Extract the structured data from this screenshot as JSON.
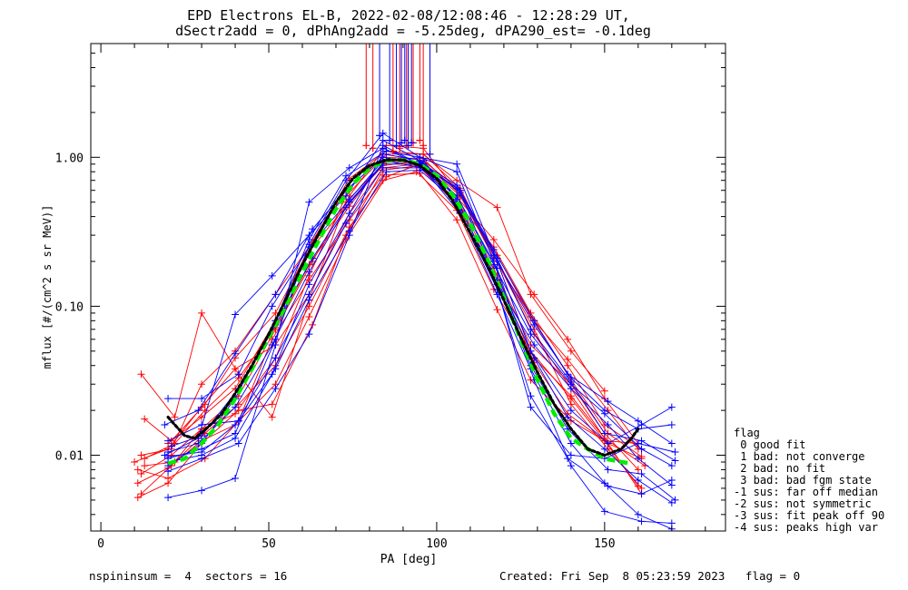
{
  "title": {
    "line1": "EPD Electrons EL-B, 2022-02-08/12:08:46 - 12:28:29 UT,",
    "line2": "dSectr2add = 0, dPhAng2add = -5.25deg, dPA290_est=  -0.1deg"
  },
  "footer": {
    "left": "nspininsum =  4  sectors = 16",
    "right": "Created: Fri Sep  8 05:23:59 2023   flag = 0"
  },
  "legend": {
    "header": "flag",
    "items": [
      " 0 good fit",
      " 1 bad: not converge",
      " 2 bad: no fit",
      " 3 bad: bad fgm state",
      "-1 sus: far off median",
      "-2 sus: not symmetric",
      "-3 sus: fit peak off 90",
      "-4 sus: peaks high var"
    ]
  },
  "colors": {
    "red": "#ff0000",
    "blue": "#0000ff",
    "green": "#00ee00",
    "black": "#000000"
  },
  "chart_data": {
    "type": "line",
    "xlabel": "PA [deg]",
    "ylabel": "mflux [#/(cm^2 s sr MeV)]",
    "xlim": [
      -3,
      186
    ],
    "ylim": [
      0.0031,
      5.8
    ],
    "yscale": "log",
    "xticks": [
      0,
      50,
      100,
      150
    ],
    "xtick_labels": [
      "0",
      "50",
      "100",
      "150"
    ],
    "yticks": [
      0.01,
      0.1,
      1.0
    ],
    "ytick_labels": [
      "0.01",
      "0.10",
      "1.00"
    ],
    "series": [
      {
        "color": "red",
        "x": [
          12,
          21,
          30,
          41,
          52,
          63,
          74,
          85,
          96,
          107,
          118,
          129,
          140,
          151,
          161
        ],
        "y": [
          0.0055,
          0.0085,
          0.015,
          0.025,
          0.07,
          0.2,
          0.55,
          1.2,
          1.15,
          0.55,
          0.2,
          0.07,
          0.022,
          0.011,
          0.006
        ]
      },
      {
        "color": "red",
        "x": [
          10,
          20,
          30,
          40,
          52,
          62,
          74,
          84,
          94,
          106,
          118,
          128,
          140,
          150,
          160
        ],
        "y": [
          0.009,
          0.011,
          0.021,
          0.038,
          0.055,
          0.12,
          0.42,
          0.85,
          0.9,
          0.48,
          0.16,
          0.055,
          0.03,
          0.014,
          0.008
        ]
      },
      {
        "color": "red",
        "x": [
          12,
          22,
          30,
          41,
          51,
          62,
          73,
          85,
          95,
          106,
          117,
          129,
          139,
          151,
          161
        ],
        "y": [
          0.035,
          0.018,
          0.09,
          0.035,
          0.018,
          0.11,
          0.5,
          0.95,
          0.85,
          0.52,
          0.18,
          0.042,
          0.019,
          0.012,
          0.0055
        ]
      },
      {
        "color": "red",
        "x": [
          13,
          21,
          31,
          40,
          52,
          61,
          74,
          84,
          96,
          107,
          118,
          128,
          140,
          150,
          160
        ],
        "y": [
          0.0175,
          0.0125,
          0.022,
          0.045,
          0.09,
          0.22,
          0.5,
          0.88,
          0.95,
          0.6,
          0.2,
          0.05,
          0.024,
          0.0125,
          0.0062
        ]
      },
      {
        "color": "red",
        "x": [
          11,
          20,
          30,
          41,
          51,
          63,
          73,
          84,
          95,
          106,
          117,
          128,
          139,
          150,
          161
        ],
        "y": [
          0.0052,
          0.0065,
          0.012,
          0.02,
          0.022,
          0.075,
          0.3,
          0.82,
          0.88,
          0.5,
          0.25,
          0.09,
          0.04,
          0.016,
          0.011
        ]
      },
      {
        "color": "red",
        "x": [
          12,
          21,
          30,
          40,
          52,
          62,
          73,
          85,
          96,
          107,
          118,
          129,
          140,
          151,
          161
        ],
        "y": [
          0.0075,
          0.01,
          0.015,
          0.019,
          0.045,
          0.16,
          0.55,
          1.05,
          1.05,
          0.62,
          0.2,
          0.065,
          0.028,
          0.012,
          0.0095
        ]
      },
      {
        "color": "red",
        "x": [
          11,
          20,
          31,
          41,
          51,
          62,
          74,
          84,
          95,
          106,
          118,
          128,
          140,
          150,
          160
        ],
        "y": [
          0.008,
          0.007,
          0.0095,
          0.017,
          0.06,
          0.15,
          0.38,
          0.76,
          0.78,
          0.38,
          0.095,
          0.032,
          0.017,
          0.0125,
          0.012
        ]
      },
      {
        "color": "red",
        "x": [
          12,
          21,
          30,
          40,
          52,
          63,
          73,
          84,
          96,
          107,
          117,
          129,
          139,
          151,
          160
        ],
        "y": [
          0.01,
          0.011,
          0.03,
          0.05,
          0.12,
          0.27,
          0.6,
          1.0,
          0.98,
          0.56,
          0.21,
          0.08,
          0.044,
          0.02,
          0.011
        ]
      },
      {
        "color": "red",
        "x": [
          20,
          30,
          40,
          52,
          62,
          74,
          85,
          96,
          106,
          118,
          128,
          140,
          150
        ],
        "y": [
          0.012,
          0.018,
          0.028,
          0.08,
          0.25,
          0.72,
          1.1,
          1.05,
          0.7,
          0.46,
          0.12,
          0.05,
          0.027
        ]
      },
      {
        "color": "red",
        "x": [
          13,
          22,
          31,
          41,
          52,
          62,
          74,
          84,
          94,
          106,
          117,
          129,
          140,
          150,
          162
        ],
        "y": [
          0.0085,
          0.009,
          0.014,
          0.022,
          0.04,
          0.1,
          0.34,
          0.7,
          0.8,
          0.44,
          0.13,
          0.045,
          0.025,
          0.013,
          0.0085
        ]
      },
      {
        "color": "red",
        "x": [
          11,
          20,
          30,
          40,
          52,
          62,
          73,
          85,
          96,
          107,
          118,
          128,
          140,
          151,
          161
        ],
        "y": [
          0.0065,
          0.0082,
          0.0125,
          0.016,
          0.03,
          0.085,
          0.28,
          0.74,
          0.92,
          0.55,
          0.22,
          0.085,
          0.032,
          0.014,
          0.0098
        ]
      },
      {
        "color": "red",
        "x": [
          13,
          22,
          31,
          41,
          52,
          62,
          74,
          84,
          95,
          106,
          117,
          129,
          139,
          150,
          160
        ],
        "y": [
          0.0095,
          0.012,
          0.02,
          0.033,
          0.072,
          0.19,
          0.47,
          0.92,
          0.94,
          0.54,
          0.28,
          0.12,
          0.06,
          0.024,
          0.012
        ]
      },
      {
        "color": "blue",
        "x": [
          20,
          30,
          40,
          52,
          62,
          73,
          84,
          95,
          106,
          118,
          128,
          140,
          151,
          161,
          170
        ],
        "y": [
          0.0095,
          0.011,
          0.014,
          0.06,
          0.26,
          0.7,
          1.45,
          1.0,
          0.9,
          0.2,
          0.05,
          0.02,
          0.012,
          0.016,
          0.021
        ]
      },
      {
        "color": "blue",
        "x": [
          20,
          30,
          40,
          52,
          62,
          74,
          84,
          96,
          106,
          117,
          129,
          140,
          150,
          160,
          170
        ],
        "y": [
          0.0052,
          0.0058,
          0.007,
          0.055,
          0.5,
          0.85,
          1.15,
          0.88,
          0.62,
          0.22,
          0.075,
          0.033,
          0.02,
          0.015,
          0.016
        ]
      },
      {
        "color": "blue",
        "x": [
          19,
          29,
          40,
          51,
          62,
          73,
          84,
          95,
          106,
          118,
          128,
          139,
          151,
          161,
          171
        ],
        "y": [
          0.01,
          0.013,
          0.088,
          0.16,
          0.3,
          0.55,
          1.3,
          0.95,
          0.55,
          0.18,
          0.04,
          0.015,
          0.008,
          0.0075,
          0.005
        ]
      },
      {
        "color": "blue",
        "x": [
          20,
          30,
          41,
          52,
          62,
          74,
          84,
          95,
          107,
          118,
          128,
          140,
          150,
          160,
          170
        ],
        "y": [
          0.0078,
          0.0095,
          0.012,
          0.028,
          0.065,
          0.3,
          1.2,
          0.9,
          0.42,
          0.12,
          0.038,
          0.012,
          0.0065,
          0.004,
          0.0032
        ]
      },
      {
        "color": "blue",
        "x": [
          20,
          30,
          40,
          52,
          62,
          73,
          85,
          95,
          106,
          117,
          129,
          140,
          150,
          161,
          170
        ],
        "y": [
          0.0085,
          0.012,
          0.024,
          0.08,
          0.28,
          0.75,
          1.1,
          1.0,
          0.8,
          0.2,
          0.032,
          0.0085,
          0.0042,
          0.0036,
          0.0035
        ]
      },
      {
        "color": "blue",
        "x": [
          20,
          30,
          41,
          51,
          62,
          74,
          84,
          96,
          106,
          118,
          128,
          139,
          151,
          161,
          170
        ],
        "y": [
          0.024,
          0.024,
          0.035,
          0.1,
          0.25,
          0.52,
          0.95,
          0.85,
          0.48,
          0.13,
          0.025,
          0.0095,
          0.0062,
          0.0055,
          0.0068
        ]
      },
      {
        "color": "blue",
        "x": [
          19,
          29,
          40,
          52,
          63,
          73,
          84,
          95,
          107,
          117,
          128,
          140,
          150,
          160,
          171
        ],
        "y": [
          0.016,
          0.02,
          0.048,
          0.12,
          0.33,
          0.6,
          1.0,
          0.92,
          0.6,
          0.16,
          0.021,
          0.01,
          0.0095,
          0.012,
          0.0105
        ]
      },
      {
        "color": "blue",
        "x": [
          20,
          30,
          41,
          51,
          62,
          74,
          84,
          96,
          106,
          118,
          129,
          140,
          151,
          160,
          170
        ],
        "y": [
          0.0125,
          0.016,
          0.017,
          0.035,
          0.14,
          0.42,
          1.05,
          0.95,
          0.52,
          0.14,
          0.055,
          0.028,
          0.016,
          0.0095,
          0.0063
        ]
      },
      {
        "color": "blue",
        "x": [
          20,
          30,
          40,
          52,
          62,
          73,
          84,
          95,
          106,
          117,
          128,
          140,
          150,
          161,
          170
        ],
        "y": [
          0.0098,
          0.0105,
          0.016,
          0.045,
          0.12,
          0.36,
          0.85,
          0.85,
          0.55,
          0.19,
          0.065,
          0.03,
          0.019,
          0.011,
          0.0085
        ]
      },
      {
        "color": "blue",
        "x": [
          21,
          30,
          41,
          52,
          63,
          74,
          85,
          95,
          106,
          117,
          129,
          139,
          151,
          160,
          170
        ],
        "y": [
          0.0115,
          0.0135,
          0.028,
          0.075,
          0.21,
          0.5,
          0.97,
          0.93,
          0.65,
          0.24,
          0.08,
          0.035,
          0.023,
          0.017,
          0.012
        ]
      },
      {
        "color": "blue",
        "x": [
          20,
          29,
          40,
          51,
          62,
          73,
          84,
          96,
          107,
          118,
          128,
          140,
          150,
          161,
          171
        ],
        "y": [
          0.0105,
          0.012,
          0.021,
          0.055,
          0.17,
          0.46,
          0.9,
          0.9,
          0.58,
          0.21,
          0.07,
          0.031,
          0.014,
          0.0125,
          0.0092
        ]
      },
      {
        "color": "blue",
        "x": [
          20,
          30,
          40,
          52,
          62,
          74,
          85,
          95,
          106,
          118,
          129,
          139,
          150,
          160,
          170
        ],
        "y": [
          0.009,
          0.01,
          0.013,
          0.038,
          0.11,
          0.32,
          0.8,
          0.82,
          0.5,
          0.15,
          0.045,
          0.018,
          0.011,
          0.0068,
          0.0048
        ]
      }
    ],
    "spikes": {
      "note": "vertical lines rising past the top of the plot near PA 90",
      "red": [
        {
          "x": 79,
          "y0": 1.2
        },
        {
          "x": 81,
          "y0": 1.15
        },
        {
          "x": 87,
          "y0": 1.1
        },
        {
          "x": 89,
          "y0": 1.15
        },
        {
          "x": 91,
          "y0": 1.2
        },
        {
          "x": 93,
          "y0": 1.25
        },
        {
          "x": 95,
          "y0": 1.3
        },
        {
          "x": 96,
          "y0": 1.2
        }
      ],
      "blue": [
        {
          "x": 83,
          "y0": 1.4
        },
        {
          "x": 86,
          "y0": 1.3
        },
        {
          "x": 88,
          "y0": 1.2
        },
        {
          "x": 89.5,
          "y0": 1.25
        },
        {
          "x": 90.5,
          "y0": 1.3
        },
        {
          "x": 91.5,
          "y0": 1.2
        },
        {
          "x": 92.5,
          "y0": 1.25
        },
        {
          "x": 98,
          "y0": 1.05
        }
      ]
    },
    "fit_curves": [
      {
        "color": "green",
        "dashed": true,
        "x": [
          20,
          25,
          30,
          35,
          40,
          45,
          50,
          55,
          60,
          65,
          70,
          75,
          80,
          85,
          90,
          95,
          100,
          105,
          110,
          115,
          120,
          125,
          130,
          135,
          140,
          145,
          150,
          155,
          158
        ],
        "y": [
          0.0088,
          0.0095,
          0.012,
          0.016,
          0.024,
          0.038,
          0.062,
          0.1,
          0.17,
          0.28,
          0.45,
          0.66,
          0.85,
          0.95,
          0.96,
          0.9,
          0.75,
          0.55,
          0.36,
          0.21,
          0.115,
          0.06,
          0.032,
          0.019,
          0.013,
          0.011,
          0.0095,
          0.009,
          0.0088
        ]
      },
      {
        "color": "black",
        "dashed": true,
        "x": [
          20,
          22,
          25,
          28,
          32,
          36,
          40,
          45,
          50,
          55,
          60,
          65,
          70,
          75,
          80,
          85,
          90,
          95,
          100,
          105,
          110,
          115,
          120,
          125,
          130,
          135,
          140,
          145,
          150,
          155,
          158,
          160
        ],
        "y": [
          0.018,
          0.016,
          0.0135,
          0.013,
          0.0155,
          0.019,
          0.026,
          0.04,
          0.065,
          0.11,
          0.19,
          0.31,
          0.5,
          0.72,
          0.88,
          0.96,
          0.96,
          0.88,
          0.72,
          0.5,
          0.31,
          0.19,
          0.11,
          0.062,
          0.036,
          0.022,
          0.015,
          0.011,
          0.01,
          0.011,
          0.013,
          0.015
        ]
      }
    ]
  }
}
